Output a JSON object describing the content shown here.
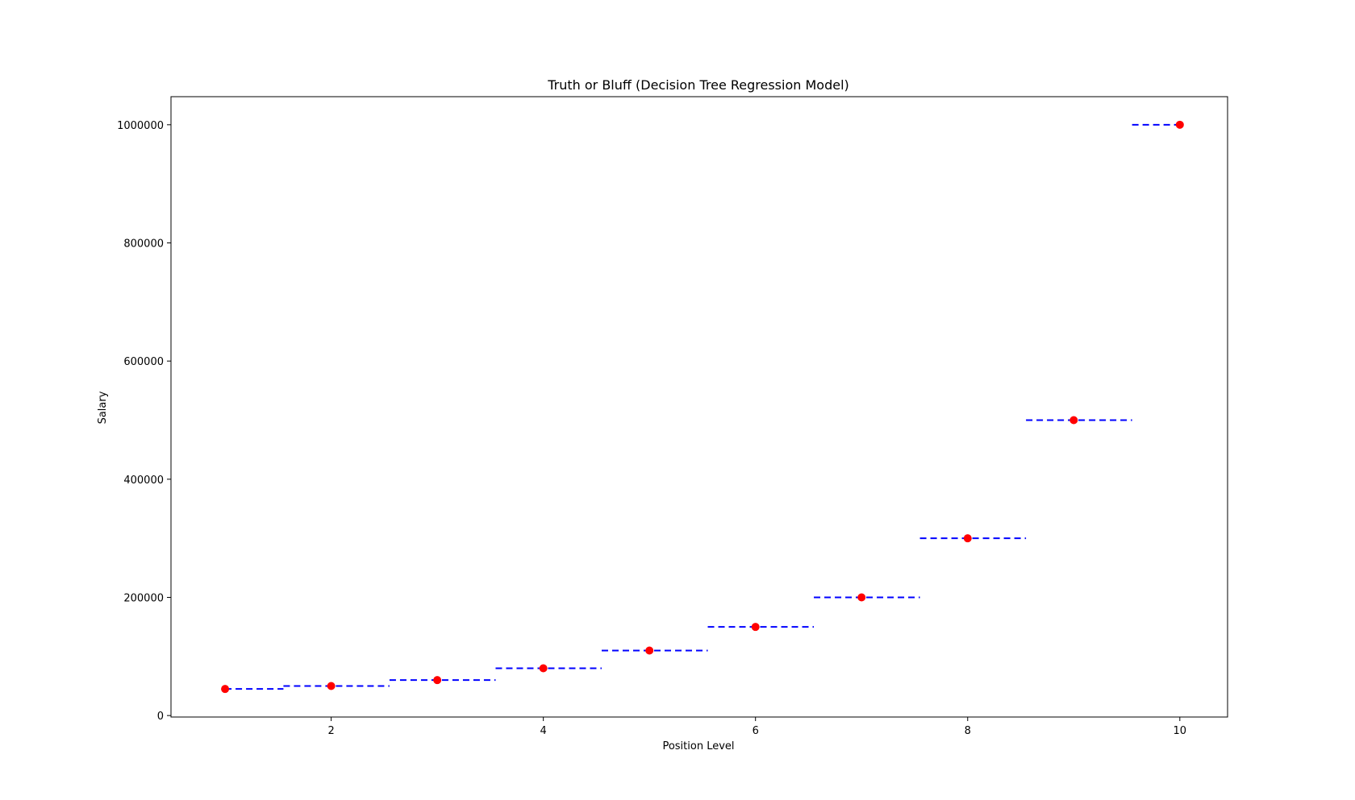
{
  "chart_data": {
    "type": "scatter",
    "title": "Truth or Bluff (Decision Tree Regression Model)",
    "xlabel": "Position Level",
    "ylabel": "Salary",
    "xlim": [
      0.49,
      10.45
    ],
    "ylim": [
      -2500,
      1047500
    ],
    "xticks": [
      2,
      4,
      6,
      8,
      10
    ],
    "xtick_labels": [
      "2",
      "4",
      "6",
      "8",
      "10"
    ],
    "yticks": [
      0,
      200000,
      400000,
      600000,
      800000,
      1000000
    ],
    "ytick_labels": [
      "0",
      "200000",
      "400000",
      "600000",
      "800000",
      "1000000"
    ],
    "grid": false,
    "series": [
      {
        "kind": "scatter",
        "color": "#ff0000",
        "x": [
          1,
          2,
          3,
          4,
          5,
          6,
          7,
          8,
          9,
          10
        ],
        "y": [
          45000,
          50000,
          60000,
          80000,
          110000,
          150000,
          200000,
          300000,
          500000,
          1000000
        ]
      },
      {
        "kind": "step-line",
        "style": "dashed",
        "color": "#0000ff",
        "segments": [
          {
            "x0": 1.0,
            "x1": 1.55,
            "y": 45000
          },
          {
            "x0": 1.55,
            "x1": 2.55,
            "y": 50000
          },
          {
            "x0": 2.55,
            "x1": 3.55,
            "y": 60000
          },
          {
            "x0": 3.55,
            "x1": 4.55,
            "y": 80000
          },
          {
            "x0": 4.55,
            "x1": 5.55,
            "y": 110000
          },
          {
            "x0": 5.55,
            "x1": 6.55,
            "y": 150000
          },
          {
            "x0": 6.55,
            "x1": 7.55,
            "y": 200000
          },
          {
            "x0": 7.55,
            "x1": 8.55,
            "y": 300000
          },
          {
            "x0": 8.55,
            "x1": 9.55,
            "y": 500000
          },
          {
            "x0": 9.55,
            "x1": 10.0,
            "y": 1000000
          }
        ]
      }
    ]
  }
}
